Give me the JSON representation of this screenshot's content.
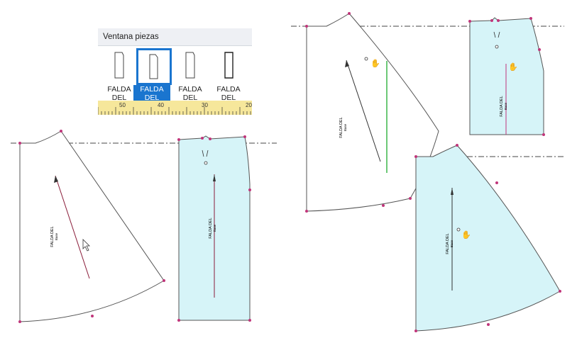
{
  "window": {
    "title": "Ventana piezas",
    "pieces": [
      {
        "label": "FALDA\nDEL",
        "selected": false
      },
      {
        "label": "FALDA\nDEL",
        "selected": true
      },
      {
        "label": "FALDA\nDEL",
        "selected": false
      },
      {
        "label": "FALDA\nDEL",
        "selected": false
      }
    ],
    "ruler_ticks": [
      "50",
      "40",
      "30",
      "20"
    ]
  },
  "pieces": {
    "name": "FALDA DEL",
    "sub": "Base"
  },
  "colors": {
    "piece_fill": "#d6f4f8",
    "point": "#c0357a",
    "outline": "#555555",
    "grain": "#8a1d3a",
    "selected": "#1a75cf",
    "ruler": "#f6e79b",
    "guide": "#3cb54a"
  }
}
